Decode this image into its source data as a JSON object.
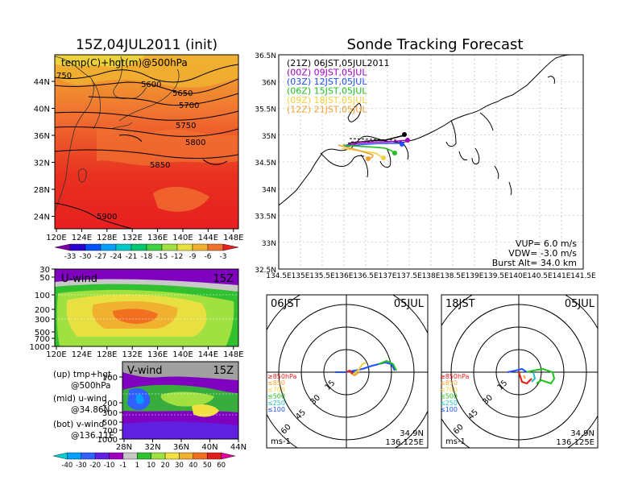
{
  "left_title": "15Z,04JUL2011 (init)",
  "right_title": "Sonde Tracking Forecast",
  "top_map": {
    "label": "temp(C)+hgt(m)@500hPa",
    "lat_ticks": [
      "44N",
      "40N",
      "36N",
      "32N",
      "28N",
      "24N"
    ],
    "lon_ticks": [
      "120E",
      "124E",
      "128E",
      "132E",
      "136E",
      "140E",
      "144E",
      "148E"
    ],
    "contours": [
      "750",
      "5600",
      "5650",
      "5700",
      "5750",
      "5800",
      "5850",
      "5900"
    ],
    "colorbar_labels": [
      "-33",
      "-30",
      "-27",
      "-24",
      "-21",
      "-18",
      "-15",
      "-12",
      "-9",
      "-6",
      "-3"
    ],
    "colorbar_colors": [
      "#7a00a8",
      "#2a00d0",
      "#0050ff",
      "#00a0ff",
      "#00c8c8",
      "#00c870",
      "#40d040",
      "#a0e040",
      "#e8e040",
      "#f0b030",
      "#f07030",
      "#e82020"
    ]
  },
  "u_panel": {
    "label": "U-wind",
    "time": "15Z",
    "y_ticks": [
      "30",
      "50",
      "100",
      "200",
      "300",
      "500",
      "700",
      "1000"
    ],
    "x_ticks": [
      "120E",
      "124E",
      "128E",
      "132E",
      "136E",
      "140E",
      "144E",
      "148E"
    ]
  },
  "v_panel": {
    "label": "V-wind",
    "time": "15Z",
    "y_ticks": [
      "100",
      "200",
      "300",
      "500",
      "700",
      "1000"
    ],
    "x_ticks": [
      "28N",
      "32N",
      "36N",
      "40N",
      "44N"
    ]
  },
  "legend": [
    {
      "line1": "(up) tmp+hgt",
      "line2": "@500hPa"
    },
    {
      "line1": "(mid) u-wind",
      "line2": "@34.86N"
    },
    {
      "line1": "(bot) v-wind",
      "line2": "@136.11E"
    }
  ],
  "wind_colorbar": {
    "labels": [
      "-40",
      "-30",
      "-20",
      "-10",
      "-1",
      "1",
      "10",
      "20",
      "30",
      "40",
      "50",
      "60"
    ],
    "colors": [
      "#00d0d0",
      "#00a0ff",
      "#3060ff",
      "#6020e0",
      "#a000c0",
      "#c8c8c8",
      "#30c030",
      "#a0e040",
      "#f0e040",
      "#f0b030",
      "#f07020",
      "#e02020",
      "#e000a0"
    ]
  },
  "track_map": {
    "lat_ticks": [
      "36.5N",
      "36N",
      "35.5N",
      "35N",
      "34.5N",
      "34N",
      "33.5N",
      "33N",
      "32.5N"
    ],
    "lon_ticks": [
      "134.5E",
      "135E",
      "135.5E",
      "136E",
      "136.5E",
      "137E",
      "137.5E",
      "138E",
      "138.5E",
      "139E",
      "139.5E",
      "140E",
      "140.5E",
      "141E",
      "141.5E"
    ],
    "launches": [
      {
        "text": "(21Z)  06JST,05JUL2011",
        "color": "#000000"
      },
      {
        "text": "(00Z)  09JST,05JUL",
        "color": "#a000c0"
      },
      {
        "text": "(03Z)  12JST,05JUL",
        "color": "#2050ff"
      },
      {
        "text": "(06Z)  15JST,05JUL",
        "color": "#20c020"
      },
      {
        "text": "(09Z)  18JST,05JUL",
        "color": "#f0d040"
      },
      {
        "text": "(12Z)  21JST,05JUL",
        "color": "#f0a030"
      }
    ],
    "params": [
      "VUP=  6.0  m/s",
      "VDW= -3.0  m/s",
      "Burst Alt=  34.0  km"
    ]
  },
  "hodo_left": {
    "time": "06JST",
    "date": "05JUL",
    "rings": [
      "15",
      "30",
      "45",
      "60"
    ],
    "levels": [
      {
        "text": "≥850hPa",
        "color": "#e02020"
      },
      {
        "text": "≤850",
        "color": "#f0a030"
      },
      {
        "text": "≤700",
        "color": "#f0d040"
      },
      {
        "text": "≤500",
        "color": "#20c020"
      },
      {
        "text": "≤250",
        "color": "#20c0c0"
      },
      {
        "text": "≤100",
        "color": "#2050ff"
      }
    ],
    "unit": "ms-1",
    "lat": "34.9N",
    "lon": "136.125E"
  },
  "hodo_right": {
    "time": "18JST",
    "date": "05JUL",
    "rings": [
      "15",
      "30",
      "45",
      "60"
    ],
    "levels": [
      {
        "text": "≥850hPa",
        "color": "#e02020"
      },
      {
        "text": "≤850",
        "color": "#f0a030"
      },
      {
        "text": "≤700",
        "color": "#f0d040"
      },
      {
        "text": "≤500",
        "color": "#20c020"
      },
      {
        "text": "≤250",
        "color": "#20c0c0"
      },
      {
        "text": "≤100",
        "color": "#2050ff"
      }
    ],
    "unit": "ms-1",
    "lat": "34.9N",
    "lon": "136.125E"
  }
}
